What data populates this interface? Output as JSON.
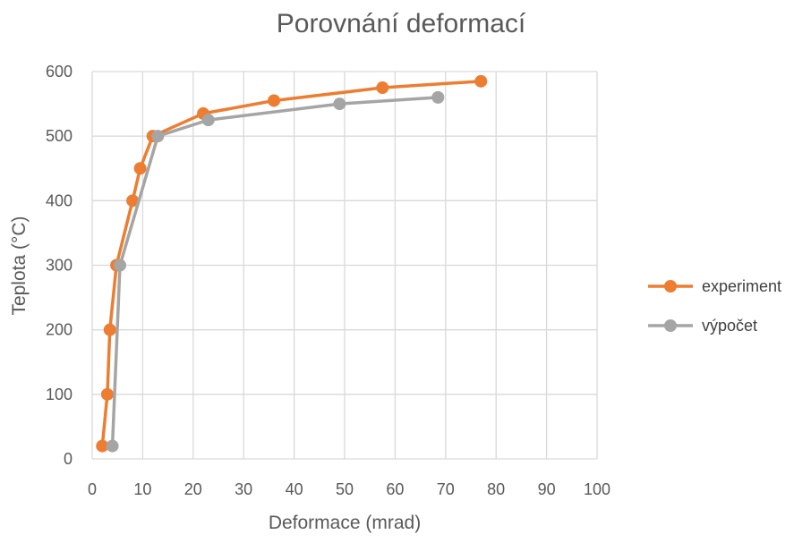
{
  "chart_data": {
    "type": "scatter",
    "title": "Porovnání deformací",
    "xlabel": "Deformace (mrad)",
    "ylabel": "Teplota (°C)",
    "xlim": [
      0,
      100
    ],
    "ylim": [
      0,
      600
    ],
    "xticks": [
      0,
      10,
      20,
      30,
      40,
      50,
      60,
      70,
      80,
      90,
      100
    ],
    "yticks": [
      0,
      100,
      200,
      300,
      400,
      500,
      600
    ],
    "grid": true,
    "legend_position": "right",
    "series": [
      {
        "name": "experiment",
        "color": "#ED7D31",
        "points": [
          {
            "x": 2,
            "y": 20
          },
          {
            "x": 3,
            "y": 100
          },
          {
            "x": 3.5,
            "y": 200
          },
          {
            "x": 4.8,
            "y": 300
          },
          {
            "x": 8,
            "y": 400
          },
          {
            "x": 9.5,
            "y": 450
          },
          {
            "x": 12,
            "y": 500
          },
          {
            "x": 22,
            "y": 535
          },
          {
            "x": 36,
            "y": 555
          },
          {
            "x": 57.5,
            "y": 575
          },
          {
            "x": 77,
            "y": 585
          }
        ]
      },
      {
        "name": "výpočet",
        "color": "#A5A5A5",
        "points": [
          {
            "x": 4,
            "y": 20
          },
          {
            "x": 5.5,
            "y": 300
          },
          {
            "x": 13,
            "y": 500
          },
          {
            "x": 23,
            "y": 525
          },
          {
            "x": 49,
            "y": 550
          },
          {
            "x": 68.5,
            "y": 560
          }
        ]
      }
    ]
  }
}
